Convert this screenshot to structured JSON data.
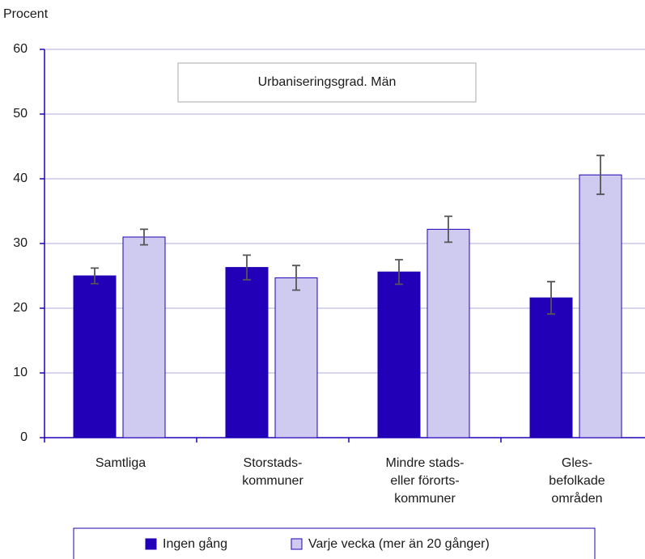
{
  "chart_data": {
    "type": "bar",
    "title": "Urbaniseringsgrad. Män",
    "y_label": "Procent",
    "categories": [
      "Samtliga",
      "Storstads-\nkommuner",
      "Mindre stads-\neller förorts-\nkommuner",
      "Gles-\nbefolkade\nområden"
    ],
    "series": [
      {
        "name": "Ingen gång",
        "color": "#2200b8",
        "values": [
          25,
          26.3,
          25.6,
          21.6
        ],
        "errors": [
          1.2,
          1.9,
          1.9,
          2.5
        ]
      },
      {
        "name": "Varje vecka (mer än 20 gånger)",
        "color": "#cfcbf0",
        "values": [
          31,
          24.7,
          32.2,
          40.6
        ],
        "errors": [
          1.2,
          1.9,
          2.0,
          3.0
        ]
      }
    ],
    "ylim": [
      0,
      60
    ],
    "yticks": [
      0,
      10,
      20,
      30,
      40,
      50,
      60
    ],
    "grid": true
  }
}
